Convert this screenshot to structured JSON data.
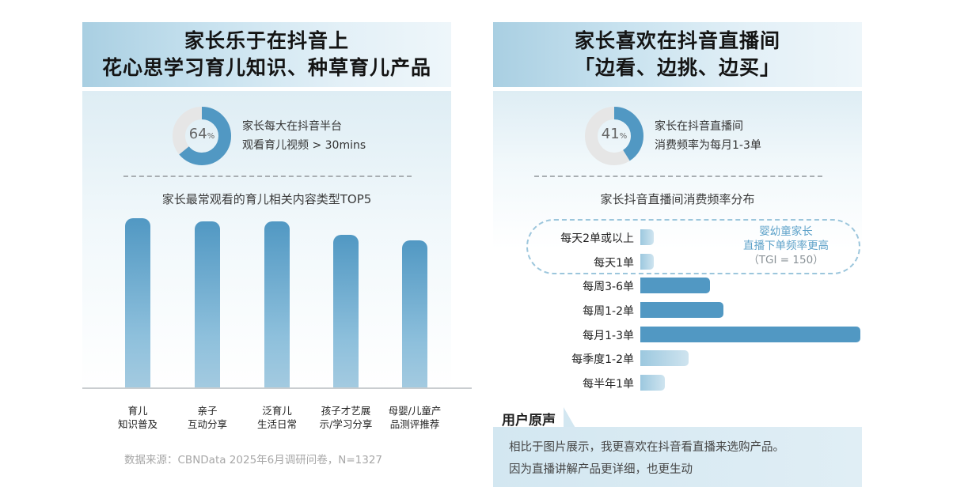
{
  "left": {
    "title_line1": "家长乐于在抖音上",
    "title_line2": "花心思学习育儿知识、种草育儿产品",
    "donut_value": "64",
    "donut_unit": "%",
    "donut_fraction": 0.64,
    "stat_line1": "家长每大在抖音半台",
    "stat_line2": "观看育儿视频 > 30mins",
    "chart_subtitle": "家长最常观看的育儿相关内容类型TOP5",
    "source": "数据来源：CBNData 2025年6月调研问卷，N=1327"
  },
  "right": {
    "title_line1": "家长喜欢在抖音直播间",
    "title_line2": "「边看、边挑、边买」",
    "donut_value": "41",
    "donut_unit": "%",
    "donut_fraction": 0.41,
    "stat_line1": "家长在抖音直播间",
    "stat_line2": "消费频率为每月1-3单",
    "chart_subtitle": "家长抖音直播间消费频率分布",
    "note_line1": "婴幼童家长",
    "note_line2": "直播下单频率更高",
    "note_line3": "（TGI = 150）",
    "voice_title": "用户原声",
    "voice_line1": "相比于图片展示，我更喜欢在抖音看直播来选购产品。",
    "voice_line2": "因为直播讲解产品更详细，也更生动"
  },
  "chart_data": [
    {
      "type": "bar",
      "title": "家长最常观看的育儿相关内容类型TOP5",
      "categories": [
        [
          "育儿",
          "知识普及"
        ],
        [
          "亲子",
          "互动分享"
        ],
        [
          "泛育儿",
          "生活日常"
        ],
        [
          "孩子才艺展",
          "示/学习分享"
        ],
        [
          "母婴/儿童产",
          "品测评推荐"
        ]
      ],
      "values": [
        100,
        98,
        98,
        90,
        87
      ],
      "ylim": [
        0,
        100
      ],
      "grid": false,
      "colors": {
        "bar_top": "#5198c3",
        "bar_bottom": "#a3cae0"
      }
    },
    {
      "type": "bar",
      "orientation": "horizontal",
      "title": "家长抖音直播间消费频率分布",
      "categories": [
        "每天2单或以上",
        "每天1单",
        "每周3-6单",
        "每周1-2单",
        "每月1-3单",
        "每季度1-2单",
        "每半年1单"
      ],
      "values": [
        2.5,
        2.5,
        13,
        15.5,
        41,
        9,
        4.5
      ],
      "highlight": [
        "每周3-6单",
        "每周1-2单",
        "每月1-3单"
      ],
      "xlim": [
        0,
        41
      ],
      "grid": false,
      "colors": {
        "dark": "#5198c3",
        "light": "#b8d8e8"
      }
    }
  ]
}
